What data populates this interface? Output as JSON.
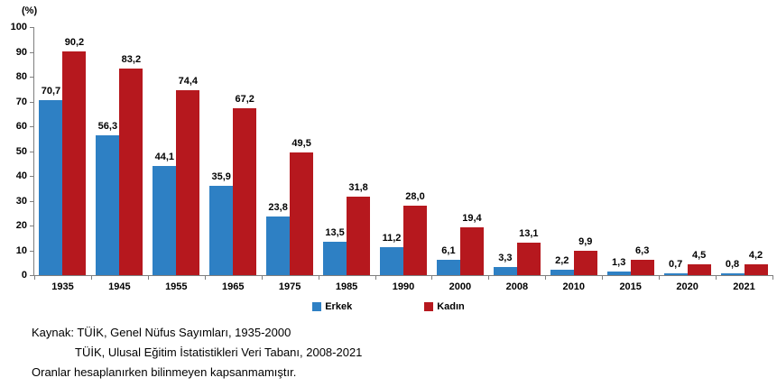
{
  "chart_data": {
    "type": "bar",
    "title": "",
    "ylabel": "(%)",
    "unit_label": "(%)",
    "categories": [
      "1935",
      "1945",
      "1955",
      "1965",
      "1975",
      "1985",
      "1990",
      "2000",
      "2008",
      "2010",
      "2015",
      "2020",
      "2021"
    ],
    "series": [
      {
        "name": "Erkek",
        "color": "#2E80C4",
        "values": [
          70.7,
          56.3,
          44.1,
          35.9,
          23.8,
          13.5,
          11.2,
          6.1,
          3.3,
          2.2,
          1.3,
          0.7,
          0.8
        ],
        "labels": [
          "70,7",
          "56,3",
          "44,1",
          "35,9",
          "23,8",
          "13,5",
          "11,2",
          "6,1",
          "3,3",
          "2,2",
          "1,3",
          "0,7",
          "0,8"
        ]
      },
      {
        "name": "Kadın",
        "color": "#B6181E",
        "values": [
          90.2,
          83.2,
          74.4,
          67.2,
          49.5,
          31.8,
          28.0,
          19.4,
          13.1,
          9.9,
          6.3,
          4.5,
          4.2
        ],
        "labels": [
          "90,2",
          "83,2",
          "74,4",
          "67,2",
          "49,5",
          "31,8",
          "28,0",
          "19,4",
          "13,1",
          "9,9",
          "6,3",
          "4,5",
          "4,2"
        ]
      }
    ],
    "ylim": [
      0,
      100
    ],
    "yticks": [
      0,
      10,
      20,
      30,
      40,
      50,
      60,
      70,
      80,
      90,
      100
    ],
    "grid": false,
    "legend_position": "bottom",
    "axis_color": "#7f7f7f"
  },
  "footer": {
    "line1": "Kaynak: TÜİK, Genel Nüfus Sayımları, 1935-2000",
    "line2": "TÜİK, Ulusal Eğitim İstatistikleri Veri Tabanı, 2008-2021",
    "line3": "Oranlar hesaplanırken bilinmeyen kapsanmamıştır."
  }
}
